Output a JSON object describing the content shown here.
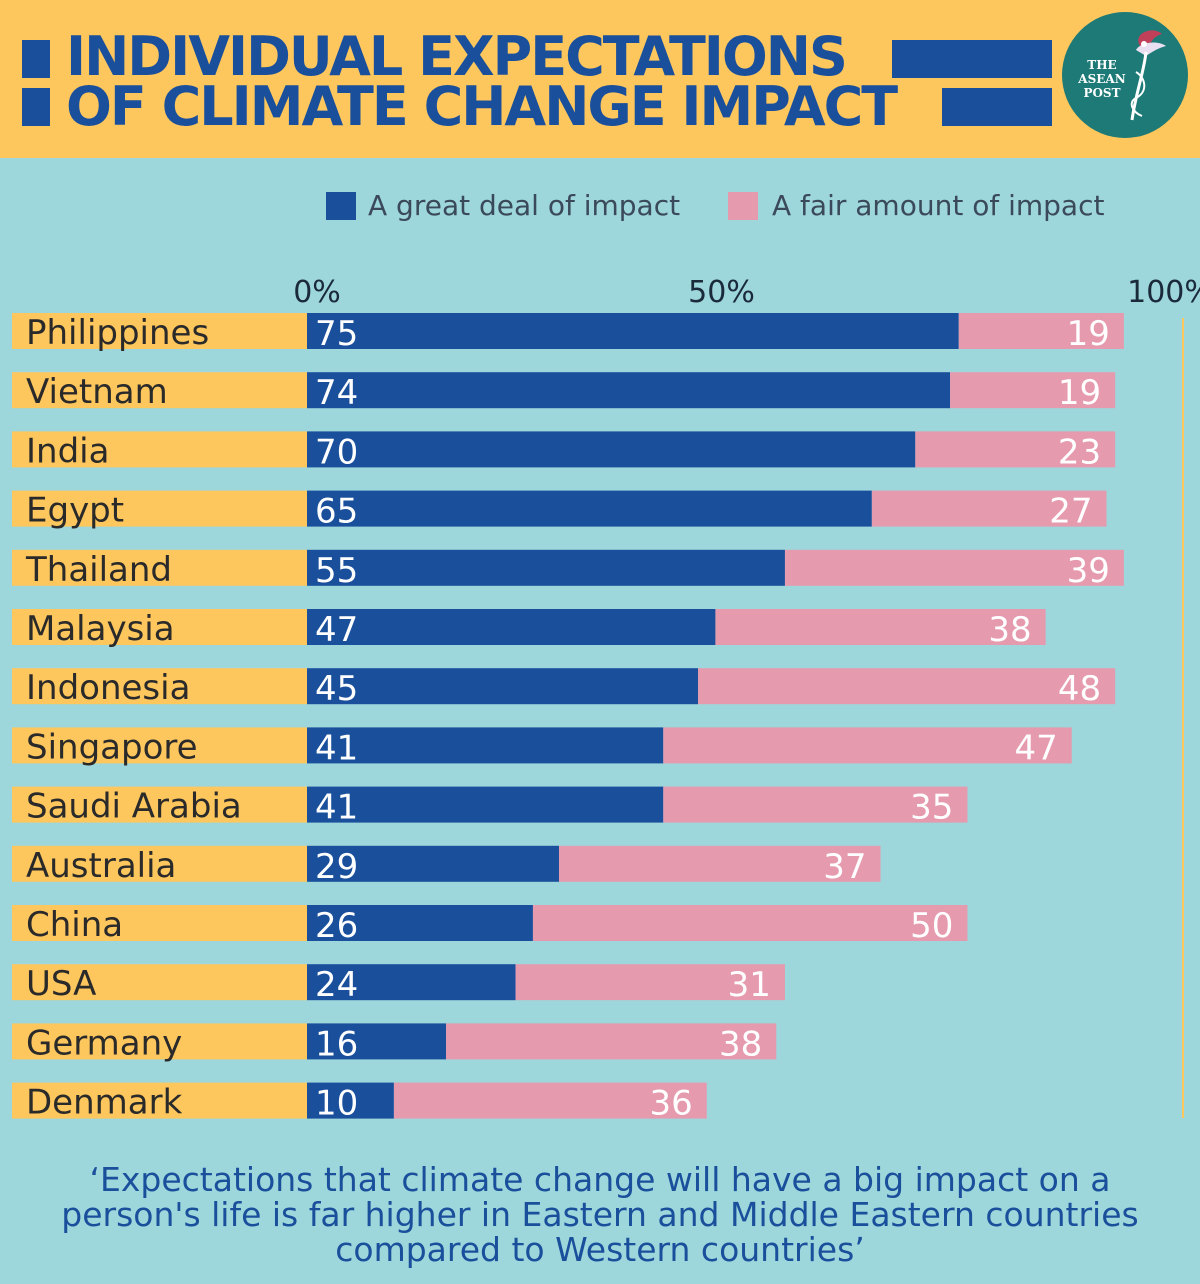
{
  "header": {
    "title_line1": "INDIVIDUAL EXPECTATIONS",
    "title_line2": "OF CLIMATE CHANGE IMPACT",
    "logo": {
      "line1": "THE",
      "line2": "ASEAN",
      "line3": "POST",
      "icon": "hummingbird-icon"
    }
  },
  "colors": {
    "header_bg": "#fdc75e",
    "page_bg": "#9dd6db",
    "great_deal": "#1a4f9c",
    "fair_amount": "#e69aae",
    "label_strip": "#fdc75e"
  },
  "chart_data": {
    "type": "bar",
    "orientation": "horizontal",
    "stacked": true,
    "title": "INDIVIDUAL EXPECTATIONS OF CLIMATE CHANGE IMPACT",
    "categories": [
      "Philippines",
      "Vietnam",
      "India",
      "Egypt",
      "Thailand",
      "Malaysia",
      "Indonesia",
      "Singapore",
      "Saudi Arabia",
      "Australia",
      "China",
      "USA",
      "Germany",
      "Denmark"
    ],
    "series": [
      {
        "name": "A great deal of impact",
        "values": [
          75,
          74,
          70,
          65,
          55,
          47,
          45,
          41,
          41,
          29,
          26,
          24,
          16,
          10
        ]
      },
      {
        "name": "A fair amount of impact",
        "values": [
          19,
          19,
          23,
          27,
          39,
          38,
          48,
          47,
          35,
          37,
          50,
          31,
          38,
          36
        ]
      }
    ],
    "xlim": [
      0,
      100
    ],
    "xticks": [
      "0%",
      "50%",
      "100%"
    ],
    "legend": "top",
    "grid": false
  },
  "note": "‘Expectations that climate change will have a big impact on a person's life is far higher in Eastern and Middle Eastern countries compared to Western countries’"
}
